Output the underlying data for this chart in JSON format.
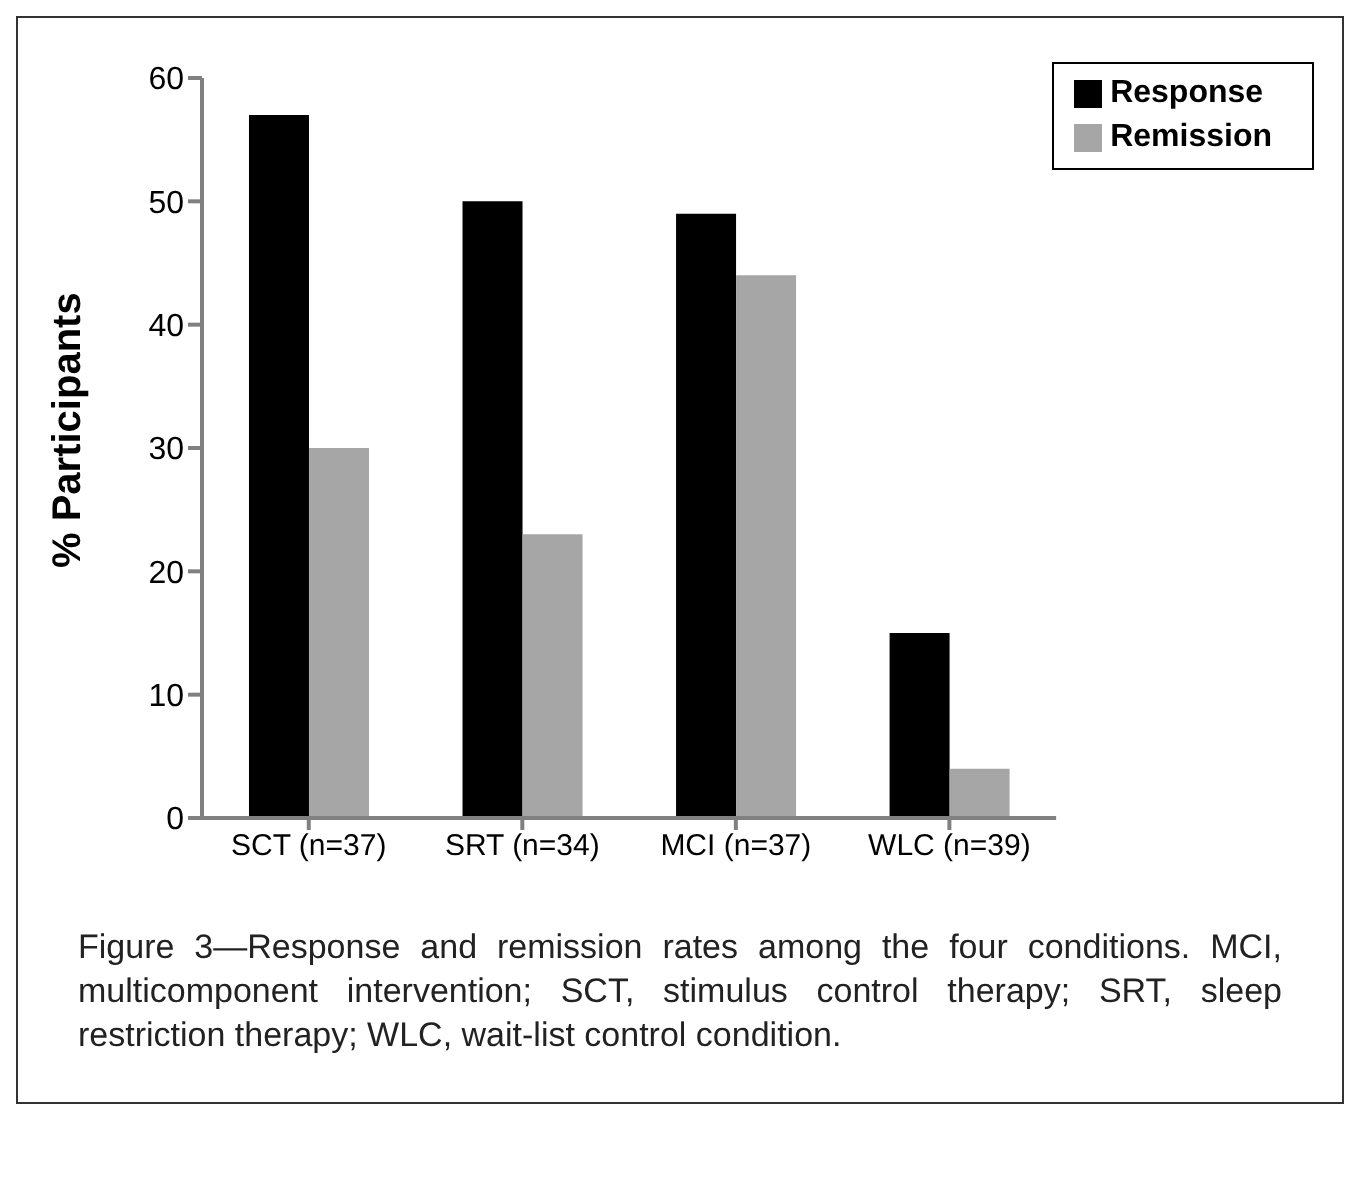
{
  "chart_data": {
    "type": "bar",
    "ylabel": "% Participants",
    "categories": [
      "SCT (n=37)",
      "SRT (n=34)",
      "MCI (n=37)",
      "WLC (n=39)"
    ],
    "series": [
      {
        "name": "Response",
        "color": "#000000",
        "values": [
          57,
          50,
          49,
          15
        ]
      },
      {
        "name": "Remission",
        "color": "#a6a6a6",
        "values": [
          30,
          23,
          44,
          4
        ]
      }
    ],
    "ylim": [
      0,
      60
    ],
    "yticks": [
      0,
      10,
      20,
      30,
      40,
      50,
      60
    ],
    "grid": false,
    "legend": "top right",
    "annotations": [
      "Figure 3—Response and remission rates among the four conditions. MCI, multicomponent intervention; SCT, stimulus control therapy; SRT, sleep restriction therapy; WLC, wait-list control condition."
    ]
  }
}
